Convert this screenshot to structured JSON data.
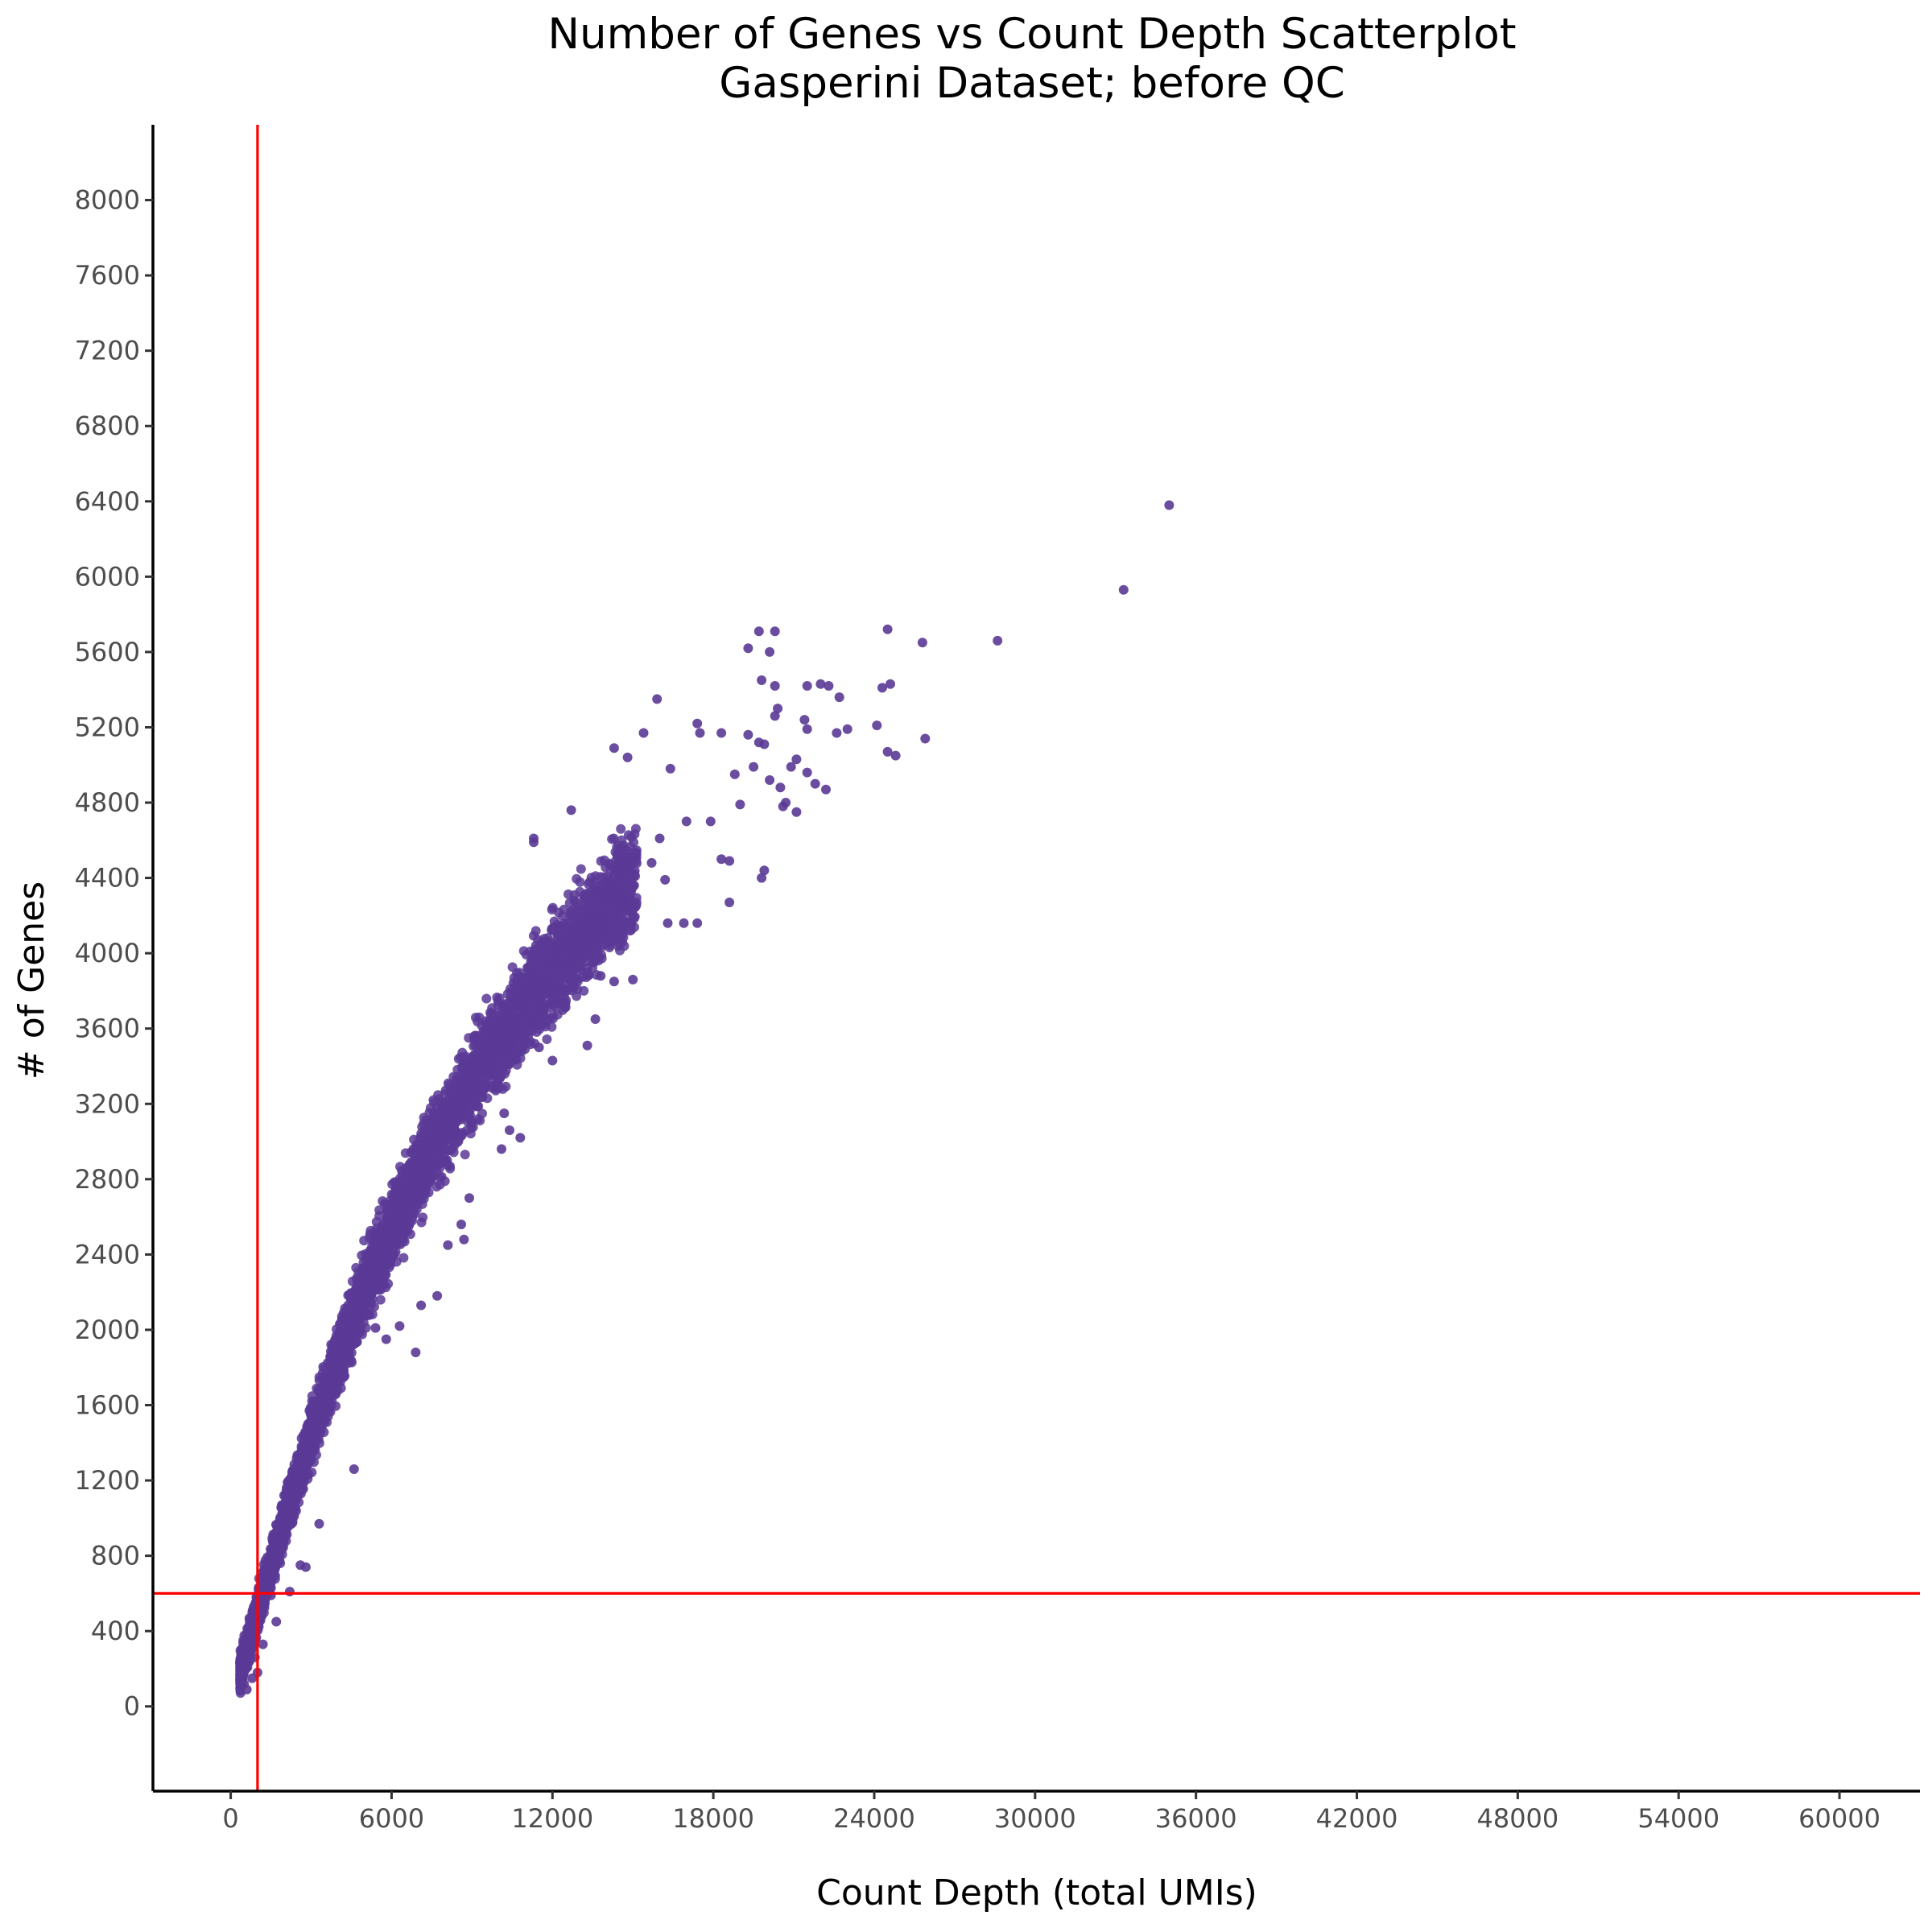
{
  "chart_data": {
    "type": "scatter",
    "title": "Number of Genes vs Count Depth Scatterplot",
    "subtitle": "Gasperini Dataset; before QC",
    "xlabel": "Count Depth (total UMIs)",
    "ylabel": "# of Genes",
    "xlim": [
      -2900,
      63000
    ],
    "ylim": [
      -450,
      8400
    ],
    "x_ticks": [
      0,
      6000,
      12000,
      18000,
      24000,
      30000,
      36000,
      42000,
      48000,
      54000,
      60000
    ],
    "y_ticks": [
      0,
      400,
      800,
      1200,
      1600,
      2000,
      2400,
      2800,
      3200,
      3600,
      4000,
      4400,
      4800,
      5200,
      5600,
      6000,
      6400,
      6800,
      7200,
      7600,
      8000
    ],
    "point_color": "#5b3a96",
    "threshold_color": "#ff0000",
    "thresholds": {
      "x": 1000,
      "y": 600
    },
    "grid": false,
    "legend": "none",
    "series": [
      {
        "points": [
          [
            35000,
            6380
          ],
          [
            33300,
            5930
          ],
          [
            28600,
            5660
          ],
          [
            24500,
            5720
          ],
          [
            25800,
            5650
          ],
          [
            19700,
            5710
          ],
          [
            20300,
            5710
          ],
          [
            19300,
            5620
          ],
          [
            20100,
            5600
          ],
          [
            19800,
            5450
          ],
          [
            20300,
            5420
          ],
          [
            15900,
            5350
          ],
          [
            21500,
            5420
          ],
          [
            22000,
            5430
          ],
          [
            22300,
            5420
          ],
          [
            22700,
            5360
          ],
          [
            24300,
            5410
          ],
          [
            24600,
            5430
          ],
          [
            20400,
            5300
          ],
          [
            20300,
            5260
          ],
          [
            21400,
            5240
          ],
          [
            21500,
            5190
          ],
          [
            22600,
            5170
          ],
          [
            23000,
            5190
          ],
          [
            24100,
            5210
          ],
          [
            25900,
            5140
          ],
          [
            24500,
            5070
          ],
          [
            24800,
            5050
          ],
          [
            15400,
            5170
          ],
          [
            17400,
            5220
          ],
          [
            17500,
            5170
          ],
          [
            18300,
            5170
          ],
          [
            19300,
            5160
          ],
          [
            19700,
            5120
          ],
          [
            19900,
            5110
          ],
          [
            14800,
            5040
          ],
          [
            14300,
            5090
          ],
          [
            16400,
            4980
          ],
          [
            19500,
            4990
          ],
          [
            20900,
            4990
          ],
          [
            21100,
            5030
          ],
          [
            21500,
            4960
          ],
          [
            21800,
            4900
          ],
          [
            22200,
            4870
          ],
          [
            20100,
            4920
          ],
          [
            20500,
            4880
          ],
          [
            20700,
            4800
          ],
          [
            21100,
            4750
          ],
          [
            18300,
            4500
          ],
          [
            18600,
            4490
          ],
          [
            19900,
            4440
          ],
          [
            19800,
            4400
          ],
          [
            18600,
            4270
          ],
          [
            17400,
            4160
          ],
          [
            16900,
            4160
          ],
          [
            16300,
            4160
          ],
          [
            15000,
            3860
          ],
          [
            14300,
            3850
          ],
          [
            13600,
            3650
          ],
          [
            13300,
            3510
          ],
          [
            12700,
            4760
          ],
          [
            11300,
            4590
          ],
          [
            11300,
            4610
          ],
          [
            10200,
            3150
          ],
          [
            10400,
            3060
          ],
          [
            10800,
            3020
          ],
          [
            10100,
            2960
          ],
          [
            8900,
            2700
          ],
          [
            8600,
            2560
          ],
          [
            8700,
            2480
          ],
          [
            8100,
            2450
          ],
          [
            7700,
            2180
          ],
          [
            6900,
            1880
          ],
          [
            7100,
            2130
          ],
          [
            6300,
            2020
          ],
          [
            5800,
            1950
          ],
          [
            4600,
            1260
          ],
          [
            3300,
            970
          ],
          [
            2600,
            750
          ],
          [
            2800,
            740
          ],
          [
            2200,
            610
          ],
          [
            1500,
            590
          ],
          [
            1700,
            450
          ],
          [
            1200,
            330
          ],
          [
            1000,
            180
          ],
          [
            500,
            120
          ],
          [
            600,
            90
          ],
          [
            800,
            150
          ],
          [
            900,
            260
          ],
          [
            5400,
            2010
          ],
          [
            13100,
            4200
          ],
          [
            15700,
            4480
          ],
          [
            16200,
            4390
          ],
          [
            17900,
            4700
          ],
          [
            19000,
            4790
          ],
          [
            20600,
            4780
          ],
          [
            18800,
            4950
          ],
          [
            16000,
            4610
          ],
          [
            17000,
            4700
          ],
          [
            14500,
            4050
          ],
          [
            13800,
            3880
          ],
          [
            12000,
            3430
          ],
          [
            11500,
            3500
          ]
        ],
        "trend_samples": [
          [
            1000,
            500
          ],
          [
            2000,
            980
          ],
          [
            3000,
            1440
          ],
          [
            4000,
            1850
          ],
          [
            5000,
            2220
          ],
          [
            6000,
            2540
          ],
          [
            7000,
            2820
          ],
          [
            8000,
            3080
          ],
          [
            9000,
            3320
          ],
          [
            10000,
            3540
          ],
          [
            11000,
            3740
          ],
          [
            12000,
            3920
          ],
          [
            13000,
            4080
          ],
          [
            14000,
            4240
          ],
          [
            15000,
            4380
          ],
          [
            16000,
            4520
          ],
          [
            17000,
            4650
          ],
          [
            18000,
            4770
          ]
        ]
      }
    ]
  }
}
